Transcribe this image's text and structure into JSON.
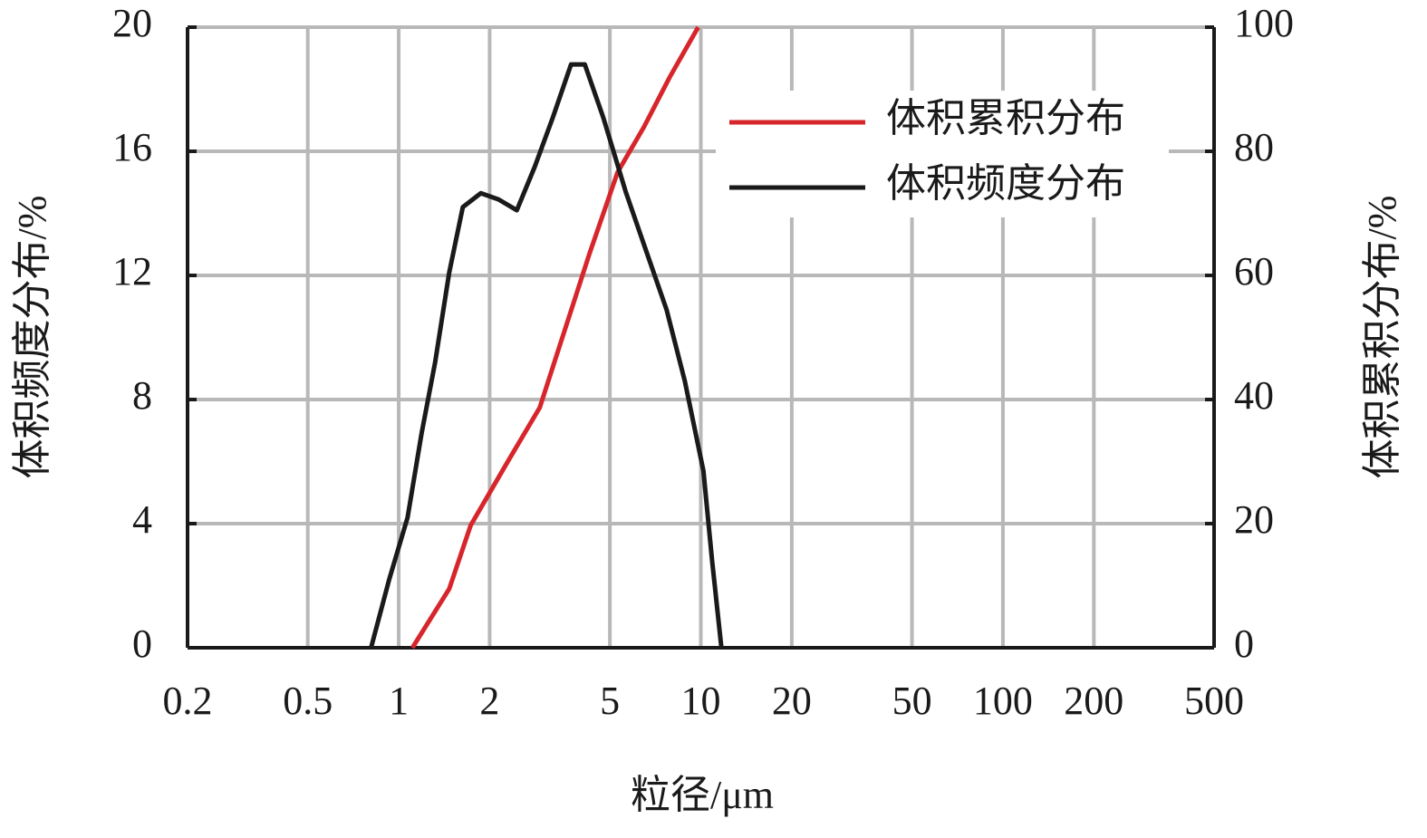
{
  "chart_data": {
    "type": "line",
    "x_label": "粒径/μm",
    "y_label": "体积频度分布/%",
    "y2_label": "体积累积分布/%",
    "xscale": "log",
    "xlim": [
      0.2,
      500
    ],
    "xticks": [
      0.2,
      0.5,
      1,
      2,
      5,
      10,
      20,
      50,
      100,
      200,
      500
    ],
    "ylim": [
      0,
      20
    ],
    "yticks": [
      0,
      4,
      8,
      12,
      16,
      20
    ],
    "y2lim": [
      0,
      100
    ],
    "y2ticks": [
      0,
      20,
      40,
      60,
      80,
      100
    ],
    "grid": true,
    "legend": "upper right",
    "series": [
      {
        "name": "体积累积分布",
        "color": "#d7262b",
        "axis": "y2",
        "x": [
          1.11,
          1.47,
          1.73,
          2.29,
          2.93,
          3.46,
          4.28,
          5.3,
          6.48,
          7.9,
          9.8
        ],
        "values": [
          0,
          9.5,
          19.7,
          29.9,
          38.7,
          49.6,
          63.5,
          76.6,
          83.9,
          92,
          100
        ]
      },
      {
        "name": "体积频度分布",
        "color": "#1a1a1a",
        "x": [
          0.81,
          0.93,
          1.07,
          1.19,
          1.32,
          1.47,
          1.63,
          1.87,
          2.14,
          2.46,
          2.82,
          3.24,
          3.72,
          4.13,
          4.75,
          5.64,
          6.48,
          7.7,
          8.85,
          10.2,
          10.9,
          11.7
        ],
        "values": [
          0,
          2.2,
          4.2,
          6.9,
          9.2,
          12.1,
          14.2,
          14.65,
          14.45,
          14.1,
          15.5,
          17.1,
          18.8,
          18.8,
          17.1,
          14.7,
          13.0,
          10.9,
          8.6,
          5.7,
          2.8,
          0
        ]
      }
    ]
  }
}
